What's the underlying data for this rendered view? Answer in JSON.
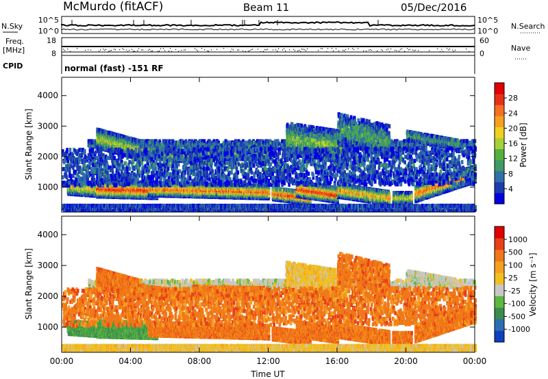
{
  "header": {
    "site": "McMurdo (fitACF)",
    "beam": "Beam 11",
    "date": "05/Dec/2016"
  },
  "status_panel": {
    "left_labels": [
      "N.Sky",
      "Freq.",
      "[MHz]",
      "CPID"
    ],
    "right_labels": [
      "N.Search",
      "Nave"
    ],
    "noise_ticks": [
      "10^5",
      "10^0"
    ],
    "freq_ticks": [
      "18",
      "8"
    ],
    "nave_ticks": [
      "60",
      "0"
    ],
    "cpid_text": "normal (fast) -151 RF"
  },
  "chart_data": [
    {
      "type": "heatmap",
      "name": "power",
      "ylabel": "Slant Range [km]",
      "ylim": [
        180,
        4600
      ],
      "yticks": [
        "1000",
        "2000",
        "3000",
        "4000"
      ],
      "xlim": [
        0,
        24
      ],
      "xticks": [
        "00:00",
        "04:00",
        "08:00",
        "12:00",
        "16:00",
        "20:00",
        "00:00"
      ],
      "colorbar": {
        "label": "Power [dB]",
        "ticks": [
          "4",
          "8",
          "12",
          "16",
          "20",
          "24",
          "28"
        ],
        "colors": [
          "#0000e0",
          "#1c3cb0",
          "#3070a8",
          "#3f9a66",
          "#54b040",
          "#a8d03a",
          "#f0d020",
          "#f5a020",
          "#f57020",
          "#e83018",
          "#e00000"
        ]
      }
    },
    {
      "type": "heatmap",
      "name": "velocity",
      "ylabel": "Slant Range [km]",
      "ylim": [
        180,
        4600
      ],
      "yticks": [
        "1000",
        "2000",
        "3000",
        "4000"
      ],
      "xlim": [
        0,
        24
      ],
      "xticks": [
        "00:00",
        "04:00",
        "08:00",
        "12:00",
        "16:00",
        "20:00",
        "00:00"
      ],
      "xlabel": "Time UT",
      "colorbar": {
        "label": "Velocity [m s⁻¹]",
        "ticks": [
          "1000",
          "500",
          "100",
          "25",
          "-25",
          "-100",
          "-500",
          "-1000"
        ],
        "colors": [
          "#1040c0",
          "#2a70b0",
          "#3c8c4c",
          "#5cb840",
          "#c8c8c8",
          "#f0c020",
          "#f5a020",
          "#f07818",
          "#e84018",
          "#e00000"
        ]
      }
    }
  ]
}
